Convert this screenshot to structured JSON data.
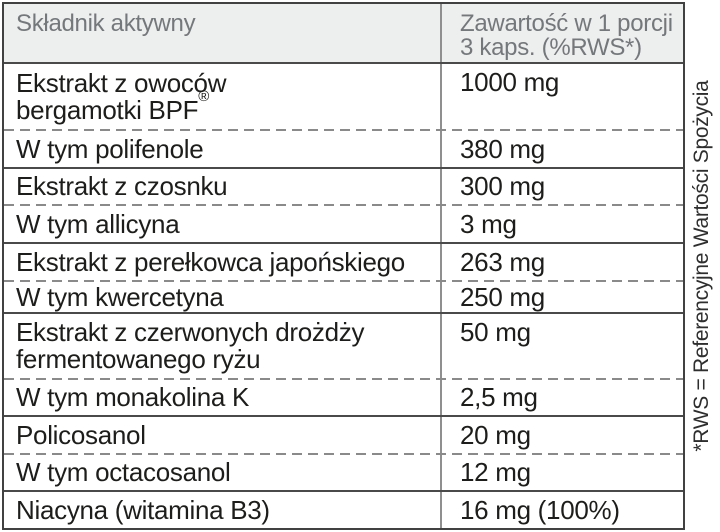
{
  "colors": {
    "header_bg": "#edeeee",
    "header_text": "#75787b",
    "body_text": "#1d1d1b",
    "outer_border": "#414141",
    "solid_separator": "#4a4a4a",
    "dashed_separator": "#8a8a8a",
    "column_divider": "#8f8f8f"
  },
  "table": {
    "header": {
      "ingredient": "Składnik aktywny",
      "amount": "Zawartość w 1 porcji\n3 kaps. (%RWS*)"
    },
    "rows": [
      {
        "name": "Ekstrakt z owoców\nbergamotki BPF",
        "sup": "®",
        "value": "1000 mg"
      },
      {
        "name": "W tym polifenole",
        "value": "380 mg"
      },
      {
        "name": "Ekstrakt z czosnku",
        "value": "300 mg"
      },
      {
        "name": "W tym allicyna",
        "value": "3 mg"
      },
      {
        "name": "Ekstrakt z perełkowca japońskiego",
        "value": "263 mg"
      },
      {
        "name": "W tym kwercetyna",
        "value": "250 mg"
      },
      {
        "name": "Ekstrakt z czerwonych drożdży\nfermentowanego ryżu",
        "value": "50 mg"
      },
      {
        "name": "W tym monakolina K",
        "value": "2,5 mg"
      },
      {
        "name": "Policosanol",
        "value": "20 mg"
      },
      {
        "name": "W tym octacosanol",
        "value": "12 mg"
      },
      {
        "name": "Niacyna (witamina B3)",
        "value": "16 mg (100%)"
      }
    ]
  },
  "footnote": "*RWS = Referencyjne Wartości Spożycia"
}
